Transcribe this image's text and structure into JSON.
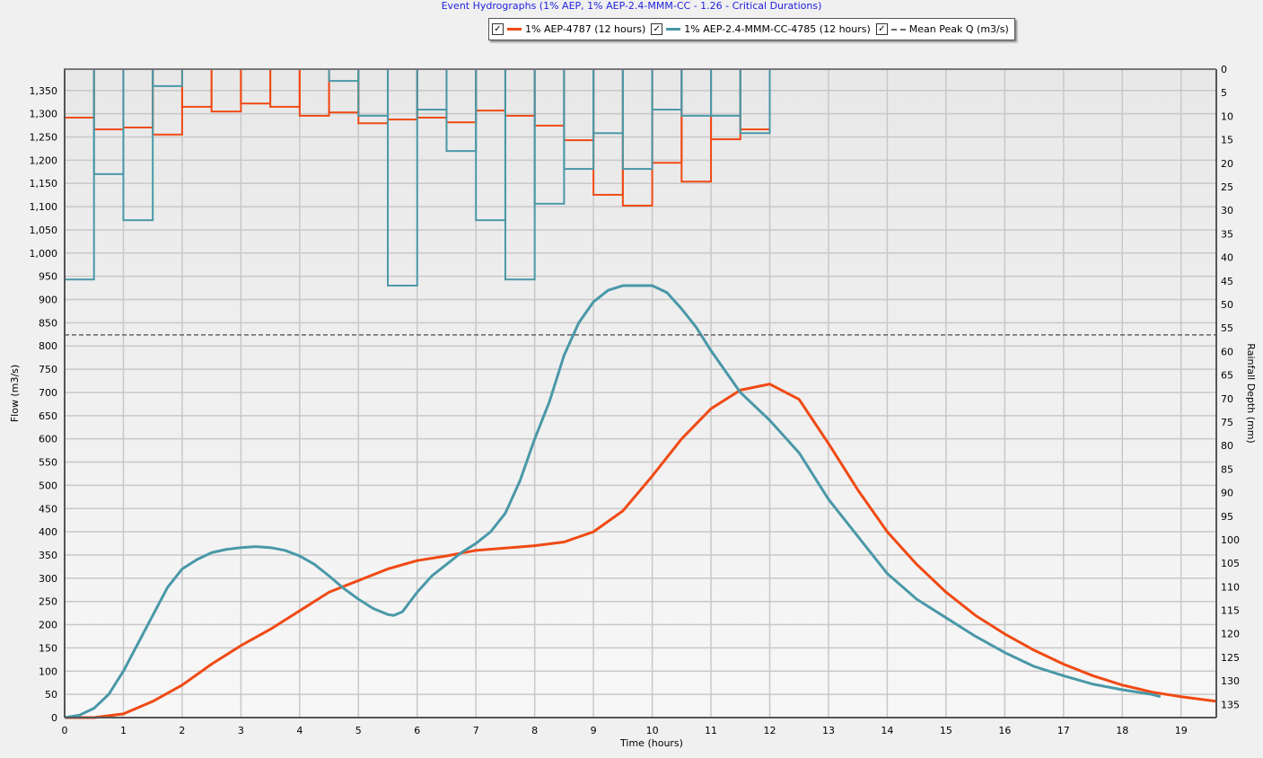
{
  "chart_data": {
    "type": "line",
    "title": "Event Hydrographs (1% AEP, 1% AEP-2.4-MMM-CC - 1.26 - Critical Durations)",
    "xlabel": "Time (hours)",
    "ylabel": "Flow (m3/s)",
    "y2label": "Rainfall Depth (mm)",
    "xlim": [
      0,
      19.6
    ],
    "ylim": [
      0,
      1396
    ],
    "y2lim": [
      0,
      137.8
    ],
    "y2_inverted": true,
    "grid": true,
    "legend_position": "top-center",
    "x_ticks": [
      0,
      1,
      2,
      3,
      4,
      5,
      6,
      7,
      8,
      9,
      10,
      11,
      12,
      13,
      14,
      15,
      16,
      17,
      18,
      19
    ],
    "y_ticks": [
      "0",
      "50",
      "100",
      "150",
      "200",
      "250",
      "300",
      "350",
      "400",
      "450",
      "500",
      "550",
      "600",
      "650",
      "700",
      "750",
      "800",
      "850",
      "900",
      "950",
      "1,000",
      "1,050",
      "1,100",
      "1,150",
      "1,200",
      "1,250",
      "1,300",
      "1,350"
    ],
    "y2_ticks": [
      0,
      5,
      10,
      15,
      20,
      25,
      30,
      35,
      40,
      45,
      50,
      55,
      60,
      65,
      70,
      75,
      80,
      85,
      90,
      95,
      100,
      105,
      110,
      115,
      120,
      125,
      130,
      135
    ],
    "rainfall_interval_hours": 0.5,
    "series": [
      {
        "name": "1% AEP-4787 (12 hours)",
        "color": "#f04a14",
        "x": [
          0,
          0.5,
          1,
          1.5,
          2,
          2.5,
          3,
          3.5,
          4,
          4.5,
          5,
          5.5,
          6,
          6.5,
          7,
          7.5,
          8,
          8.5,
          9,
          9.5,
          10,
          10.5,
          11,
          11.5,
          12,
          12.5,
          13,
          13.5,
          14,
          14.5,
          15,
          15.5,
          16,
          16.5,
          17,
          17.5,
          18,
          18.5,
          19,
          19.6
        ],
        "y": [
          0,
          0,
          8,
          35,
          70,
          115,
          155,
          190,
          230,
          270,
          295,
          320,
          338,
          348,
          360,
          365,
          370,
          378,
          400,
          445,
          520,
          600,
          665,
          705,
          718,
          685,
          590,
          490,
          400,
          330,
          270,
          220,
          180,
          145,
          115,
          90,
          70,
          55,
          45,
          35
        ],
        "rainfall_mm": [
          10.3,
          12.8,
          12.4,
          13.9,
          8.0,
          9.0,
          7.3,
          8.0,
          9.9,
          9.2,
          11.5,
          10.7,
          10.3,
          11.3,
          8.8,
          9.9,
          12.0,
          15.1,
          26.7,
          29.0,
          19.9,
          23.9,
          14.9,
          12.8
        ]
      },
      {
        "name": "1% AEP-2.4-MMM-CC-4785 (12 hours)",
        "color": "#4a98a8",
        "x": [
          0,
          0.25,
          0.5,
          0.75,
          1,
          1.25,
          1.5,
          1.75,
          2,
          2.25,
          2.5,
          2.75,
          3,
          3.25,
          3.5,
          3.75,
          4,
          4.25,
          4.5,
          4.75,
          5,
          5.25,
          5.5,
          5.6,
          5.75,
          6,
          6.25,
          6.5,
          6.75,
          7,
          7.25,
          7.5,
          7.75,
          8,
          8.25,
          8.5,
          8.75,
          9,
          9.25,
          9.5,
          10,
          10.25,
          10.5,
          10.75,
          11,
          11.5,
          12,
          12.5,
          13,
          13.5,
          14,
          14.5,
          15,
          15.5,
          16,
          16.5,
          17,
          17.5,
          18,
          18.5,
          18.65
        ],
        "y": [
          0,
          5,
          20,
          50,
          100,
          160,
          220,
          280,
          320,
          340,
          355,
          362,
          366,
          368,
          366,
          360,
          348,
          330,
          305,
          278,
          255,
          235,
          222,
          220,
          228,
          270,
          305,
          330,
          355,
          375,
          400,
          440,
          510,
          600,
          680,
          780,
          850,
          895,
          920,
          930,
          930,
          915,
          880,
          840,
          790,
          700,
          640,
          570,
          470,
          390,
          310,
          255,
          215,
          175,
          140,
          110,
          90,
          72,
          60,
          50,
          45
        ],
        "rainfall_mm": [
          44.7,
          22.3,
          32.1,
          3.6,
          0,
          0,
          0,
          0,
          0,
          2.5,
          9.9,
          46.0,
          8.6,
          17.4,
          32.1,
          44.7,
          28.6,
          21.2,
          13.6,
          21.2,
          8.6,
          9.9,
          9.9,
          13.6
        ]
      },
      {
        "name": "Mean Peak Q (m3/s)",
        "color": "#666666",
        "constant_y": 824
      }
    ]
  },
  "legend": {
    "check": "✓"
  }
}
